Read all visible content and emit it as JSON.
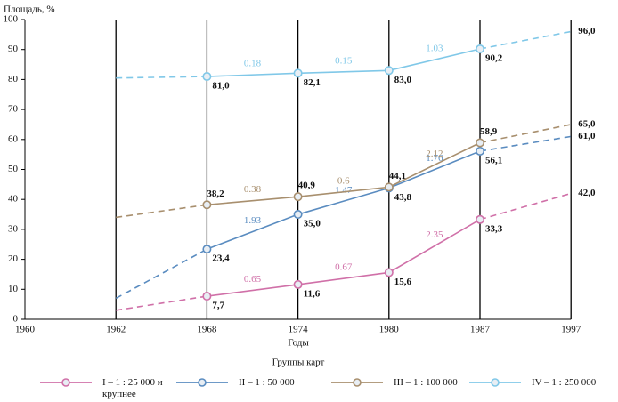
{
  "chart_data": {
    "type": "line",
    "y_label": "Площадь, %",
    "x_label": "Годы",
    "legend_title": "Группы карт",
    "categories": [
      "1960",
      "1962",
      "1968",
      "1974",
      "1980",
      "1987",
      "1997"
    ],
    "ylim": [
      0,
      100
    ],
    "yticks": [
      0,
      10,
      20,
      30,
      40,
      50,
      60,
      70,
      80,
      90,
      100
    ],
    "series": [
      {
        "name": "I – 1 : 25 000 и крупнее",
        "color": "#d070a8",
        "label_position": "below",
        "values": [
          null,
          3,
          7.7,
          11.6,
          15.6,
          33.3,
          42.0
        ],
        "value_labels": [
          null,
          null,
          "7,7",
          "11,6",
          "15,6",
          "33,3",
          "42,0"
        ],
        "growth_labels": [
          0.65,
          0.67,
          2.35
        ]
      },
      {
        "name": "II – 1 : 50 000",
        "color": "#5a8cc0",
        "label_position": "below",
        "values": [
          null,
          7,
          23.4,
          35.0,
          43.8,
          56.1,
          61.0
        ],
        "value_labels": [
          null,
          null,
          "23,4",
          "35,0",
          "43,8",
          "56,1",
          "61,0"
        ],
        "growth_labels": [
          1.93,
          1.47,
          1.76
        ]
      },
      {
        "name": "III – 1 : 100 000",
        "color": "#a88f6e",
        "label_position": "above",
        "values": [
          null,
          34,
          38.2,
          40.9,
          44.1,
          58.9,
          65.0
        ],
        "value_labels": [
          null,
          null,
          "38,2",
          "40,9",
          "44,1",
          "58,9",
          "65,0"
        ],
        "growth_labels": [
          0.38,
          0.6,
          2.12
        ]
      },
      {
        "name": "IV – 1 : 250 000",
        "color": "#80c8e8",
        "label_position": "below",
        "values": [
          null,
          80.5,
          81.0,
          82.1,
          83.0,
          90.2,
          96.0
        ],
        "value_labels": [
          null,
          null,
          "81,0",
          "82,1",
          "83,0",
          "90,2",
          "96,0"
        ],
        "growth_labels": [
          0.18,
          0.15,
          1.03
        ]
      }
    ]
  }
}
